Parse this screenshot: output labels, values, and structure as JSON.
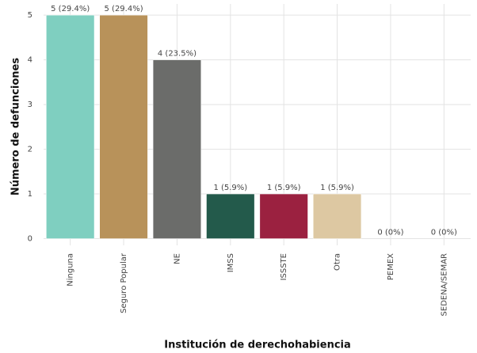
{
  "chart_data": {
    "type": "bar",
    "x_label": "Institución de derechohabiencia",
    "y_label": "Número de defunciones",
    "categories": [
      "Ninguna",
      "Seguro Popular",
      "NE",
      "IMSS",
      "ISSSTE",
      "Otra",
      "PEMEX",
      "SEDENA/SEMAR"
    ],
    "values": [
      5,
      5,
      4,
      1,
      1,
      1,
      0,
      0
    ],
    "value_labels": [
      "5 (29.4%)",
      "5 (29.4%)",
      "4 (23.5%)",
      "1 (5.9%)",
      "1 (5.9%)",
      "1 (5.9%)",
      "0 (0%)",
      "0 (0%)"
    ],
    "colors": [
      "#7fcfc0",
      "#b8925a",
      "#6b6c6a",
      "#235a4b",
      "#9b2140",
      "#ddc8a2",
      "#999999",
      "#999999"
    ],
    "ylim": [
      -0.15,
      5.25
    ],
    "yticks": [
      0,
      1,
      2,
      3,
      4,
      5
    ],
    "grid": true
  }
}
